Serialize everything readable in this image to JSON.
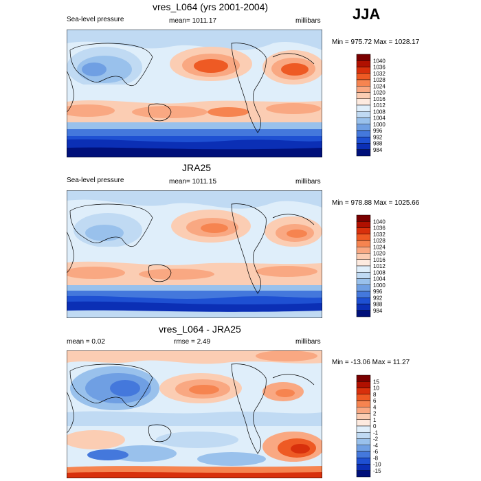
{
  "season": "JJA",
  "panels": [
    {
      "title": "vres_L064 (yrs 2001-2004)",
      "left_label": "Sea-level pressure",
      "center_label": "mean= 1011.17",
      "right_label": "millibars",
      "minmax": "Min = 975.72 Max = 1028.17",
      "colorbar": {
        "levels": [
          "1040",
          "1036",
          "1032",
          "1028",
          "1024",
          "1020",
          "1016",
          "1012",
          "1008",
          "1004",
          "1000",
          "996",
          "992",
          "988",
          "984"
        ],
        "colors": [
          "#7a0000",
          "#b01000",
          "#d8300c",
          "#ee5a24",
          "#f68450",
          "#f9a882",
          "#fbcdb3",
          "#fdeadf",
          "#dfeefa",
          "#c0daf3",
          "#99c1ec",
          "#6f9fe3",
          "#4478dc",
          "#1e50d2",
          "#0b2fb5",
          "#00107a"
        ]
      }
    },
    {
      "title": "JRA25",
      "left_label": "Sea-level pressure",
      "center_label": "mean= 1011.15",
      "right_label": "millibars",
      "minmax": "Min = 978.88 Max = 1025.66",
      "colorbar": {
        "levels": [
          "1040",
          "1036",
          "1032",
          "1028",
          "1024",
          "1020",
          "1016",
          "1012",
          "1008",
          "1004",
          "1000",
          "996",
          "992",
          "988",
          "984"
        ],
        "colors": [
          "#7a0000",
          "#b01000",
          "#d8300c",
          "#ee5a24",
          "#f68450",
          "#f9a882",
          "#fbcdb3",
          "#fdeadf",
          "#dfeefa",
          "#c0daf3",
          "#99c1ec",
          "#6f9fe3",
          "#4478dc",
          "#1e50d2",
          "#0b2fb5",
          "#00107a"
        ]
      }
    },
    {
      "title": "vres_L064 - JRA25",
      "left_label": "mean =   0.02",
      "center_label": "rmse =   2.49",
      "right_label": "millibars",
      "minmax": "Min = -13.06 Max =  11.27",
      "colorbar": {
        "levels": [
          "15",
          "10",
          "8",
          "6",
          "4",
          "2",
          "1",
          "0",
          "-1",
          "-2",
          "-4",
          "-6",
          "-8",
          "-10",
          "-15"
        ],
        "colors": [
          "#7a0000",
          "#b01000",
          "#d8300c",
          "#ee5a24",
          "#f68450",
          "#f9a882",
          "#fbcdb3",
          "#fdeadf",
          "#dfeefa",
          "#c0daf3",
          "#99c1ec",
          "#6f9fe3",
          "#4478dc",
          "#1e50d2",
          "#0b2fb5",
          "#00107a"
        ]
      }
    }
  ]
}
